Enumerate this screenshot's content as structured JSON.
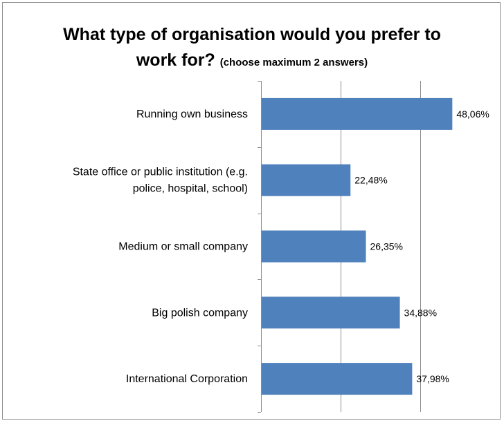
{
  "chart_data": {
    "type": "bar",
    "orientation": "horizontal",
    "title": "What type of organisation would you prefer to work for?",
    "subtitle": "(choose maximum 2 answers)",
    "categories": [
      "Running own business",
      "State office or public institution (e.g. police, hospital, school)",
      "Medium or small company",
      "Big polish company",
      "International Corporation"
    ],
    "category_lines": [
      [
        "Running own business"
      ],
      [
        "State office or public institution (e.g.",
        "police, hospital, school)"
      ],
      [
        "Medium or small company"
      ],
      [
        "Big polish company"
      ],
      [
        "International Corporation"
      ]
    ],
    "values": [
      48.06,
      22.48,
      26.35,
      34.88,
      37.98
    ],
    "value_labels": [
      "48,06%",
      "22,48%",
      "26,35%",
      "34,88%",
      "37,98%"
    ],
    "xlim": [
      0,
      60
    ],
    "grid": true,
    "bar_color": "#4f81bd"
  }
}
